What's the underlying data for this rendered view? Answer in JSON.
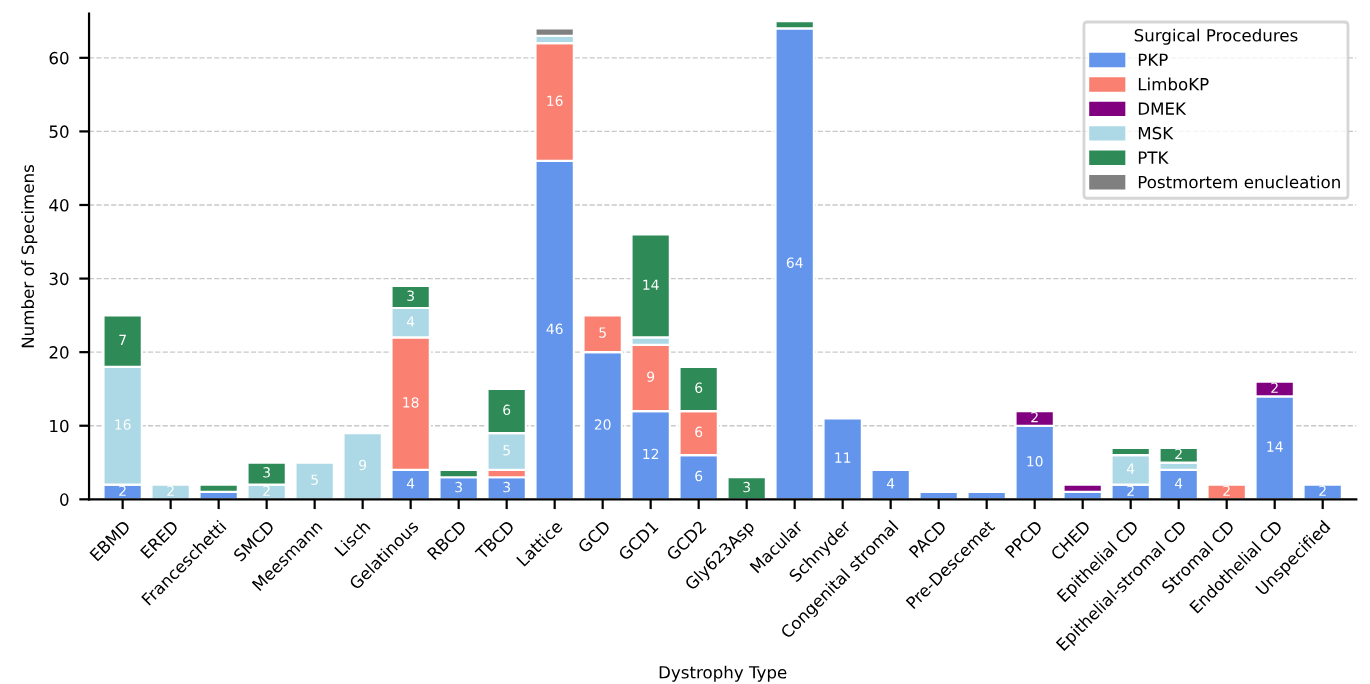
{
  "chart_data": {
    "type": "bar",
    "stacked": true,
    "xlabel": "Dystrophy Type",
    "ylabel": "Number of Specimens",
    "legend_title": "Surgical Procedures",
    "legend": "top right",
    "grid": "y",
    "categories": [
      "EBMD",
      "ERED",
      "Franceschetti",
      "SMCD",
      "Meesmann",
      "Lisch",
      "Gelatinous",
      "RBCD",
      "TBCD",
      "Lattice",
      "GCD",
      "GCD1",
      "GCD2",
      "Gly623Asp",
      "Macular",
      "Schnyder",
      "Congenital stromal",
      "PACD",
      "Pre-Descemet",
      "PPCD",
      "CHED",
      "Epithelial CD",
      "Epithelial-stromal CD",
      "Stromal CD",
      "Endothelial CD",
      "Unspecified"
    ],
    "series": [
      {
        "name": "PKP",
        "color": "#6495ed",
        "values": [
          2,
          null,
          1,
          null,
          null,
          null,
          4,
          3,
          3,
          46,
          20,
          12,
          6,
          null,
          64,
          11,
          4,
          1,
          1,
          10,
          1,
          2,
          4,
          null,
          14,
          2
        ],
        "value_labels": [
          "2",
          null,
          null,
          null,
          null,
          null,
          "4",
          "3",
          "3",
          "46",
          "20",
          "12",
          "6",
          null,
          "64",
          "11",
          "4",
          null,
          null,
          "10",
          null,
          "2",
          "4",
          null,
          "14",
          "2"
        ]
      },
      {
        "name": "LimboKP",
        "color": "#fa8072",
        "values": [
          null,
          null,
          null,
          null,
          null,
          null,
          18,
          null,
          1,
          16,
          5,
          9,
          6,
          null,
          null,
          null,
          null,
          null,
          null,
          null,
          null,
          null,
          null,
          2,
          null,
          null
        ],
        "value_labels": [
          null,
          null,
          null,
          null,
          null,
          null,
          "18",
          null,
          null,
          "16",
          "5",
          "9",
          "6",
          null,
          null,
          null,
          null,
          null,
          null,
          null,
          null,
          null,
          null,
          "2",
          null,
          null
        ]
      },
      {
        "name": "DMEK",
        "color": "#800080",
        "values": [
          null,
          null,
          null,
          null,
          null,
          null,
          null,
          null,
          null,
          null,
          null,
          null,
          null,
          null,
          null,
          null,
          null,
          null,
          null,
          2,
          1,
          null,
          null,
          null,
          2,
          null
        ],
        "value_labels": [
          null,
          null,
          null,
          null,
          null,
          null,
          null,
          null,
          null,
          null,
          null,
          null,
          null,
          null,
          null,
          null,
          null,
          null,
          null,
          "2",
          null,
          null,
          null,
          null,
          "2",
          null
        ]
      },
      {
        "name": "MSK",
        "color": "#add8e6",
        "values": [
          16,
          2,
          null,
          2,
          5,
          9,
          4,
          null,
          5,
          1,
          null,
          1,
          null,
          null,
          null,
          null,
          null,
          null,
          null,
          null,
          null,
          4,
          1,
          null,
          null,
          null
        ],
        "value_labels": [
          "16",
          "2",
          null,
          "2",
          "5",
          "9",
          "4",
          null,
          "5",
          null,
          null,
          null,
          null,
          null,
          null,
          null,
          null,
          null,
          null,
          null,
          null,
          "4",
          null,
          null,
          null,
          null
        ]
      },
      {
        "name": "PTK",
        "color": "#2e8b57",
        "values": [
          7,
          null,
          1,
          3,
          null,
          null,
          3,
          1,
          6,
          null,
          null,
          14,
          6,
          3,
          1,
          null,
          null,
          null,
          null,
          null,
          null,
          1,
          2,
          null,
          null,
          null
        ],
        "value_labels": [
          "7",
          null,
          null,
          "3",
          null,
          null,
          "3",
          null,
          "6",
          null,
          null,
          "14",
          "6",
          "3",
          null,
          null,
          null,
          null,
          null,
          null,
          null,
          null,
          "2",
          null,
          null,
          null
        ]
      },
      {
        "name": "Postmortem enucleation",
        "color": "#808080",
        "values": [
          null,
          null,
          null,
          null,
          null,
          null,
          null,
          null,
          null,
          1,
          null,
          null,
          null,
          null,
          null,
          null,
          null,
          null,
          null,
          null,
          null,
          null,
          null,
          null,
          null,
          null
        ]
      }
    ],
    "ylim": [
      0,
      66
    ],
    "yticks": [
      0,
      10,
      20,
      30,
      40,
      50,
      60
    ]
  }
}
